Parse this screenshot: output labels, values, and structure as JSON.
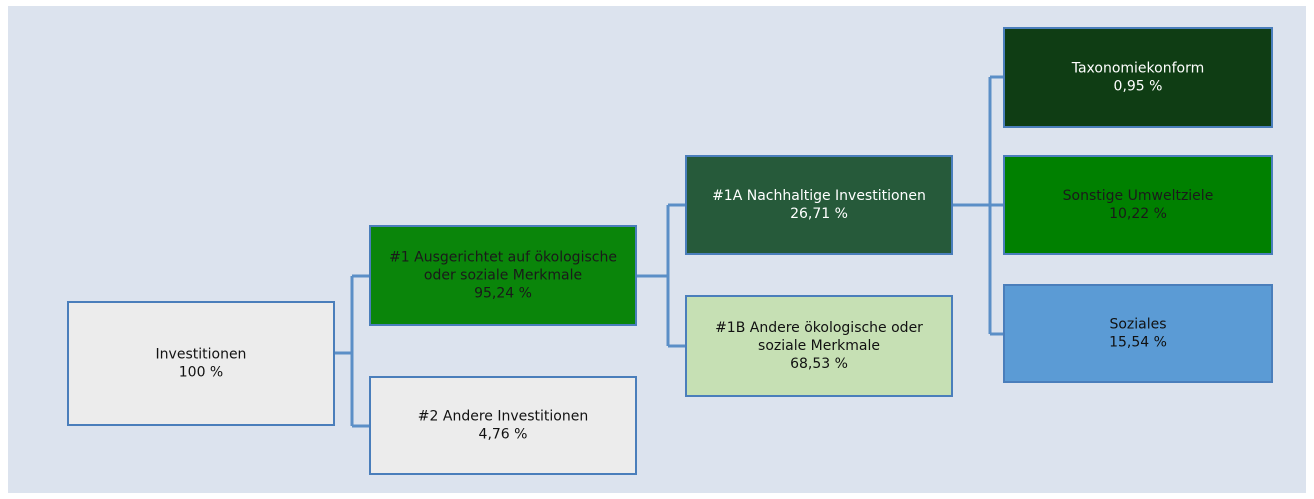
{
  "nodes": [
    {
      "label": [
        "Investitionen"
      ],
      "value": "100 %"
    },
    {
      "label": [
        "#1 Ausgerichtet auf ökologische",
        "oder soziale Merkmale"
      ],
      "value": "95,24 %"
    },
    {
      "label": [
        "#2 Andere Investitionen"
      ],
      "value": "4,76 %"
    },
    {
      "label": [
        "#1A Nachhaltige Investitionen"
      ],
      "value": "26,71 %"
    },
    {
      "label": [
        "#1B Andere ökologische oder",
        "soziale Merkmale"
      ],
      "value": "68,53 %"
    },
    {
      "label": [
        "Taxonomiekonform"
      ],
      "value": "0,95 %"
    },
    {
      "label": [
        "Sonstige Umweltziele"
      ],
      "value": "10,22 %"
    },
    {
      "label": [
        "Soziales"
      ],
      "value": "15,54 %"
    }
  ]
}
